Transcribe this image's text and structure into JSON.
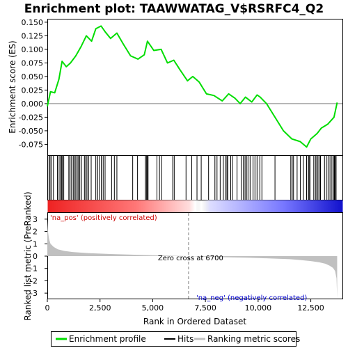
{
  "title": "Enrichment plot: TAAWWATAG_V$RSRFC4_Q2",
  "chart_data": {
    "type": "line",
    "xlabel": "Rank in Ordered Dataset",
    "ylabel_top": "Enrichment score (ES)",
    "ylabel_bottom": "Ranked list metric (PreRanked)",
    "x_range": [
      0,
      14000
    ],
    "x_ticks": [
      0,
      2500,
      5000,
      7500,
      10000,
      12500
    ],
    "x_tick_labels": [
      "0",
      "2,500",
      "5,000",
      "7,500",
      "10,000",
      "12,500"
    ],
    "es_ylim": [
      -0.095,
      0.155
    ],
    "es_ticks": [
      0.15,
      0.125,
      0.1,
      0.075,
      0.05,
      0.025,
      0.0,
      -0.025,
      -0.05,
      -0.075
    ],
    "es_tick_labels": [
      "0.150",
      "0.125",
      "0.100",
      "0.075",
      "0.050",
      "0.025",
      "0.000",
      "-0.025",
      "-0.050",
      "-0.075"
    ],
    "metric_ylim": [
      -3.5,
      3.5
    ],
    "metric_ticks": [
      3,
      2,
      1,
      0,
      -1,
      -2,
      -3
    ],
    "metric_tick_labels": [
      "3",
      "2",
      "1",
      "0",
      "-1",
      "-2",
      "-3"
    ],
    "zero_cross": 6700,
    "zero_cross_label": "Zero cross at 6700",
    "pos_label": "'na_pos' (positively correlated)",
    "neg_label": "'na_neg' (negatively correlated)",
    "es_curve": {
      "x": [
        0,
        150,
        350,
        550,
        700,
        900,
        1100,
        1350,
        1600,
        1850,
        2100,
        2300,
        2550,
        2750,
        3000,
        3300,
        3600,
        3950,
        4300,
        4600,
        4750,
        5050,
        5400,
        5700,
        6000,
        6300,
        6650,
        6900,
        7200,
        7550,
        7900,
        8300,
        8600,
        8900,
        9150,
        9400,
        9700,
        9950,
        10100,
        10400,
        10800,
        11200,
        11600,
        12000,
        12300,
        12500,
        12800,
        13000,
        13300,
        13600,
        13750
      ],
      "y": [
        -0.005,
        0.022,
        0.02,
        0.045,
        0.078,
        0.068,
        0.075,
        0.088,
        0.105,
        0.125,
        0.115,
        0.138,
        0.143,
        0.132,
        0.12,
        0.13,
        0.11,
        0.088,
        0.082,
        0.09,
        0.115,
        0.098,
        0.1,
        0.075,
        0.08,
        0.062,
        0.042,
        0.05,
        0.04,
        0.018,
        0.015,
        0.005,
        0.018,
        0.01,
        0.0,
        0.012,
        0.003,
        0.016,
        0.012,
        0.0,
        -0.025,
        -0.05,
        -0.065,
        -0.07,
        -0.08,
        -0.065,
        -0.055,
        -0.045,
        -0.038,
        -0.025,
        0.002
      ]
    },
    "hits": [
      80,
      130,
      210,
      290,
      480,
      560,
      620,
      680,
      720,
      780,
      1020,
      1080,
      1150,
      1230,
      1290,
      1350,
      1420,
      1480,
      1540,
      1620,
      1760,
      1820,
      1880,
      1960,
      2080,
      2300,
      2390,
      2470,
      2560,
      2650,
      2740,
      3050,
      3180,
      3300,
      4050,
      4280,
      4650,
      4700,
      4740,
      4780,
      5200,
      5320,
      5420,
      5950,
      6020,
      6580,
      6850,
      7100,
      7300,
      7650,
      7950,
      8050,
      8200,
      8350,
      8450,
      8520,
      8560,
      8700,
      8780,
      9000,
      9200,
      9300,
      9380,
      9450,
      9520,
      9620,
      9760,
      9850,
      9950,
      10080,
      10180,
      10800,
      11550,
      11620,
      11680,
      11850,
      12000,
      12150,
      12300,
      12380,
      12420,
      12460,
      12640,
      12720,
      12780,
      12840,
      12900,
      12960,
      13150,
      13240,
      13320,
      13410,
      13500,
      13580,
      13620,
      13660,
      13700
    ],
    "metric_curve": {
      "x": [
        0,
        30,
        80,
        150,
        300,
        500,
        800,
        1200,
        2000,
        3000,
        4000,
        5000,
        6000,
        6700,
        7500,
        8500,
        9500,
        10500,
        11500,
        12000,
        12500,
        12900,
        13200,
        13400,
        13550,
        13650,
        13720,
        13750
      ],
      "y": [
        2.9,
        2.0,
        1.4,
        1.0,
        0.75,
        0.55,
        0.42,
        0.33,
        0.24,
        0.17,
        0.12,
        0.07,
        0.03,
        0.0,
        -0.04,
        -0.09,
        -0.13,
        -0.18,
        -0.25,
        -0.32,
        -0.4,
        -0.5,
        -0.62,
        -0.78,
        -0.95,
        -1.2,
        -1.8,
        -3.4
      ]
    },
    "legend": [
      "Enrichment profile",
      "Hits",
      "Ranking metric scores"
    ],
    "colors": {
      "es_line": "#00dd00",
      "hits": "#000000",
      "metric_fill": "#c0c0c0",
      "pos_text": "#cc0000",
      "neg_text": "#0000cc",
      "zero_line": "#808080"
    }
  }
}
